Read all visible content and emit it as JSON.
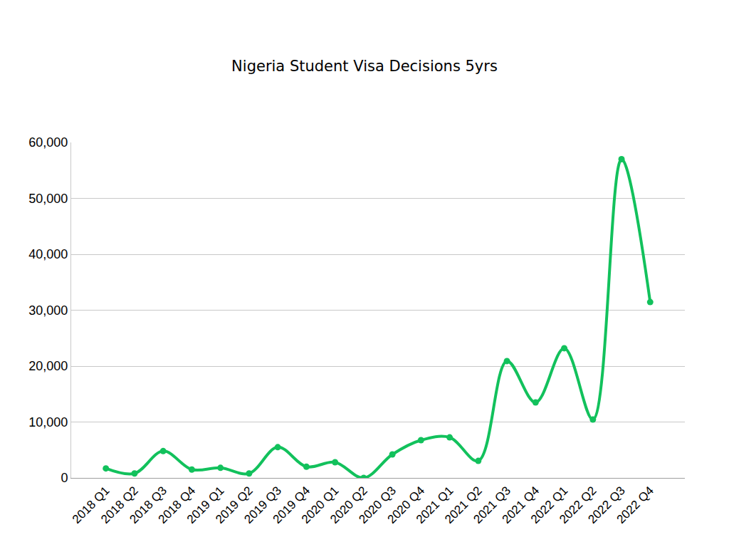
{
  "chart_data": {
    "type": "line",
    "title": "Nigeria Student Visa Decisions 5yrs",
    "categories": [
      "2018 Q1",
      "2018 Q2",
      "2018 Q3",
      "2018 Q4",
      "2019 Q1",
      "2019 Q2",
      "2019 Q3",
      "2019 Q4",
      "2020 Q1",
      "2020 Q2",
      "2020 Q3",
      "2020 Q4",
      "2021 Q1",
      "2021 Q2",
      "2021 Q3",
      "2021 Q4",
      "2022 Q1",
      "2022 Q2",
      "2022 Q3",
      "2022 Q4"
    ],
    "values": [
      1700,
      800,
      4800,
      1500,
      1800,
      800,
      5500,
      2000,
      2800,
      0,
      4200,
      6750,
      7250,
      3050,
      20900,
      13500,
      23200,
      10450,
      57000,
      31450
    ],
    "color": "#12c15c",
    "ylim": [
      0,
      60000
    ],
    "yticks": [
      0,
      {
        "value": 10000,
        "label": "10,000"
      },
      {
        "value": 20000,
        "label": "20,000"
      },
      {
        "value": 30000,
        "label": "30,000"
      },
      {
        "value": 40000,
        "label": "40,000"
      },
      {
        "value": 50000,
        "label": "50,000"
      },
      {
        "value": 60000,
        "label": "60,000"
      }
    ],
    "grid": true,
    "marker": "circle"
  }
}
